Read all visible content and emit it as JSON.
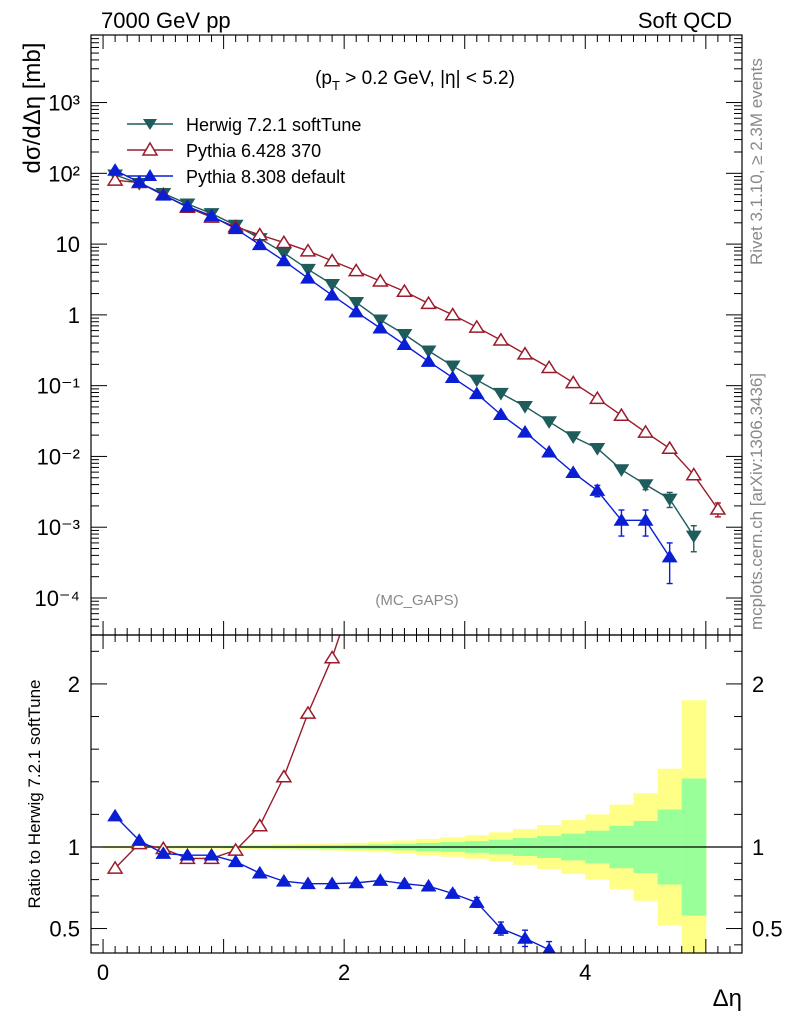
{
  "header": {
    "left": "7000 GeV pp",
    "right": "Soft QCD"
  },
  "side_labels": {
    "rivet": "Rivet 3.1.10, ≥ 2.3M events",
    "mcplots": "mcplots.cern.ch [arXiv:1306.3436]"
  },
  "colors": {
    "herwig": "#1f5c5c",
    "pythia6": "#9b1b2b",
    "pythia8": "#0a1ed6",
    "band_inner": "#99ff99",
    "band_outer": "#ffff88"
  },
  "chart_data": [
    {
      "type": "line",
      "panel": "main",
      "title": "",
      "ylabel": "dσ/dΔη [mb]",
      "annotation": "(pT > 0.2 GeV, |η| < 5.2)",
      "annotation_parts": {
        "pre": "(p",
        "sub": "T",
        "post": " > 0.2 GeV, |η| < 5.2)"
      },
      "watermark": "(MC_GAPS)",
      "yscale": "log",
      "ylim": [
        3e-05,
        9000
      ],
      "xlim": [
        -0.1,
        5.3
      ],
      "y_tick_labels": [
        "10⁻⁴",
        "10⁻³",
        "10⁻²",
        "10⁻¹",
        "1",
        "10",
        "10²",
        "10³"
      ],
      "legend_position": "top-left",
      "series": [
        {
          "name": "Herwig 7.2.1 softTune",
          "marker": "triangle-down",
          "x": [
            0.1,
            0.3,
            0.5,
            0.7,
            0.9,
            1.1,
            1.3,
            1.5,
            1.7,
            1.9,
            2.1,
            2.3,
            2.5,
            2.7,
            2.9,
            3.1,
            3.3,
            3.5,
            3.7,
            3.9,
            4.1,
            4.3,
            4.5,
            4.7,
            4.9
          ],
          "y": [
            95,
            72,
            52,
            37,
            27,
            18.5,
            12,
            7.5,
            4.4,
            2.7,
            1.5,
            0.85,
            0.53,
            0.31,
            0.19,
            0.12,
            0.078,
            0.051,
            0.031,
            0.019,
            0.013,
            0.0065,
            0.004,
            0.0025,
            0.00075
          ],
          "err_low": [
            0,
            0,
            0,
            0,
            0,
            0,
            0,
            0,
            0,
            0,
            0,
            0,
            0,
            0,
            0,
            0,
            0,
            0,
            0,
            0,
            0,
            0,
            0.0006,
            0.0006,
            0.0003
          ],
          "err_high": [
            0,
            0,
            0,
            0,
            0,
            0,
            0,
            0,
            0,
            0,
            0,
            0,
            0,
            0,
            0,
            0,
            0,
            0,
            0,
            0,
            0,
            0,
            0.0006,
            0.0006,
            0.0003
          ]
        },
        {
          "name": "Pythia 6.428 370",
          "marker": "triangle-up-open",
          "x": [
            0.1,
            0.3,
            0.5,
            0.7,
            0.9,
            1.1,
            1.3,
            1.5,
            1.7,
            1.9,
            2.1,
            2.3,
            2.5,
            2.7,
            2.9,
            3.1,
            3.3,
            3.5,
            3.7,
            3.9,
            4.1,
            4.3,
            4.5,
            4.7,
            4.9,
            5.1
          ],
          "y": [
            80,
            74,
            50,
            33,
            24,
            17.5,
            13.5,
            10.5,
            8.0,
            5.8,
            4.2,
            3.0,
            2.15,
            1.45,
            1.0,
            0.67,
            0.44,
            0.28,
            0.18,
            0.11,
            0.066,
            0.038,
            0.022,
            0.013,
            0.0055,
            0.0018
          ],
          "err_low": [
            0,
            0,
            0,
            0,
            0,
            0,
            0,
            0,
            0,
            0,
            0,
            0,
            0,
            0,
            0,
            0,
            0,
            0,
            0,
            0,
            0,
            0,
            0,
            0,
            0,
            0.0004
          ],
          "err_high": [
            0,
            0,
            0,
            0,
            0,
            0,
            0,
            0,
            0,
            0,
            0,
            0,
            0,
            0,
            0,
            0,
            0,
            0,
            0,
            0,
            0,
            0,
            0,
            0,
            0,
            0.0004
          ]
        },
        {
          "name": "Pythia 8.308 default",
          "marker": "triangle-up",
          "x": [
            0.1,
            0.3,
            0.5,
            0.7,
            0.9,
            1.1,
            1.3,
            1.5,
            1.7,
            1.9,
            2.1,
            2.3,
            2.5,
            2.7,
            2.9,
            3.1,
            3.3,
            3.5,
            3.7,
            3.9,
            4.1,
            4.3,
            4.5,
            4.7
          ],
          "y": [
            110,
            75,
            49,
            34,
            25,
            16.5,
            9.8,
            5.8,
            3.3,
            1.9,
            1.1,
            0.65,
            0.38,
            0.22,
            0.13,
            0.077,
            0.039,
            0.022,
            0.0115,
            0.0059,
            0.0033,
            0.00125,
            0.00125,
            0.00038
          ],
          "err_low": [
            0,
            0,
            0,
            0,
            0,
            0,
            0,
            0,
            0,
            0,
            0,
            0,
            0,
            0,
            0,
            0,
            0,
            0,
            0,
            0,
            0.0006,
            0.0005,
            0.0005,
            0.00022
          ],
          "err_high": [
            0,
            0,
            0,
            0,
            0,
            0,
            0,
            0,
            0,
            0,
            0,
            0,
            0,
            0,
            0,
            0,
            0,
            0,
            0,
            0,
            0.0006,
            0.0005,
            0.0005,
            0.00022
          ]
        }
      ]
    },
    {
      "type": "line",
      "panel": "ratio",
      "ylabel": "Ratio to Herwig 7.2.1 softTune",
      "xlabel": "Δη",
      "xlim": [
        -0.1,
        5.3
      ],
      "ylim": [
        0.35,
        2.3
      ],
      "x_tick_labels": [
        "0",
        "2",
        "4"
      ],
      "y_tick_labels": [
        "0.5",
        "1",
        "2"
      ],
      "reference_line": 1,
      "band_bins": [
        0.0,
        0.2,
        0.4,
        0.6,
        0.8,
        1.0,
        1.2,
        1.4,
        1.6,
        1.8,
        2.0,
        2.2,
        2.4,
        2.6,
        2.8,
        3.0,
        3.2,
        3.4,
        3.6,
        3.8,
        4.0,
        4.2,
        4.4,
        4.6,
        4.8,
        5.0
      ],
      "band_inner": [
        0.004,
        0.004,
        0.004,
        0.005,
        0.005,
        0.006,
        0.007,
        0.008,
        0.009,
        0.011,
        0.013,
        0.016,
        0.02,
        0.025,
        0.03,
        0.036,
        0.045,
        0.055,
        0.067,
        0.082,
        0.1,
        0.13,
        0.16,
        0.23,
        0.42
      ],
      "band_outer": [
        0.008,
        0.008,
        0.009,
        0.01,
        0.011,
        0.012,
        0.014,
        0.016,
        0.019,
        0.022,
        0.026,
        0.032,
        0.04,
        0.05,
        0.06,
        0.072,
        0.09,
        0.11,
        0.135,
        0.165,
        0.2,
        0.26,
        0.33,
        0.48,
        0.9
      ],
      "series": [
        {
          "name": "Pythia 6.428 370",
          "marker": "triangle-up-open",
          "x": [
            0.1,
            0.3,
            0.5,
            0.7,
            0.9,
            1.1,
            1.3,
            1.5,
            1.7,
            1.9
          ],
          "y": [
            0.87,
            1.02,
            0.99,
            0.93,
            0.93,
            0.98,
            1.13,
            1.43,
            1.82,
            2.16
          ]
        },
        {
          "name": "Pythia 8.308 default",
          "marker": "triangle-up",
          "x": [
            0.1,
            0.3,
            0.5,
            0.7,
            0.9,
            1.1,
            1.3,
            1.5,
            1.7,
            1.9,
            2.1,
            2.3,
            2.5,
            2.7,
            2.9,
            3.1,
            3.3,
            3.5,
            3.7
          ],
          "y": [
            1.19,
            1.04,
            0.96,
            0.95,
            0.95,
            0.91,
            0.84,
            0.79,
            0.775,
            0.775,
            0.78,
            0.795,
            0.775,
            0.76,
            0.715,
            0.66,
            0.5,
            0.44,
            0.37
          ],
          "err": [
            0,
            0,
            0,
            0,
            0,
            0,
            0,
            0,
            0,
            0,
            0,
            0,
            0,
            0,
            0.02,
            0.03,
            0.04,
            0.05,
            0.05
          ]
        }
      ]
    }
  ]
}
